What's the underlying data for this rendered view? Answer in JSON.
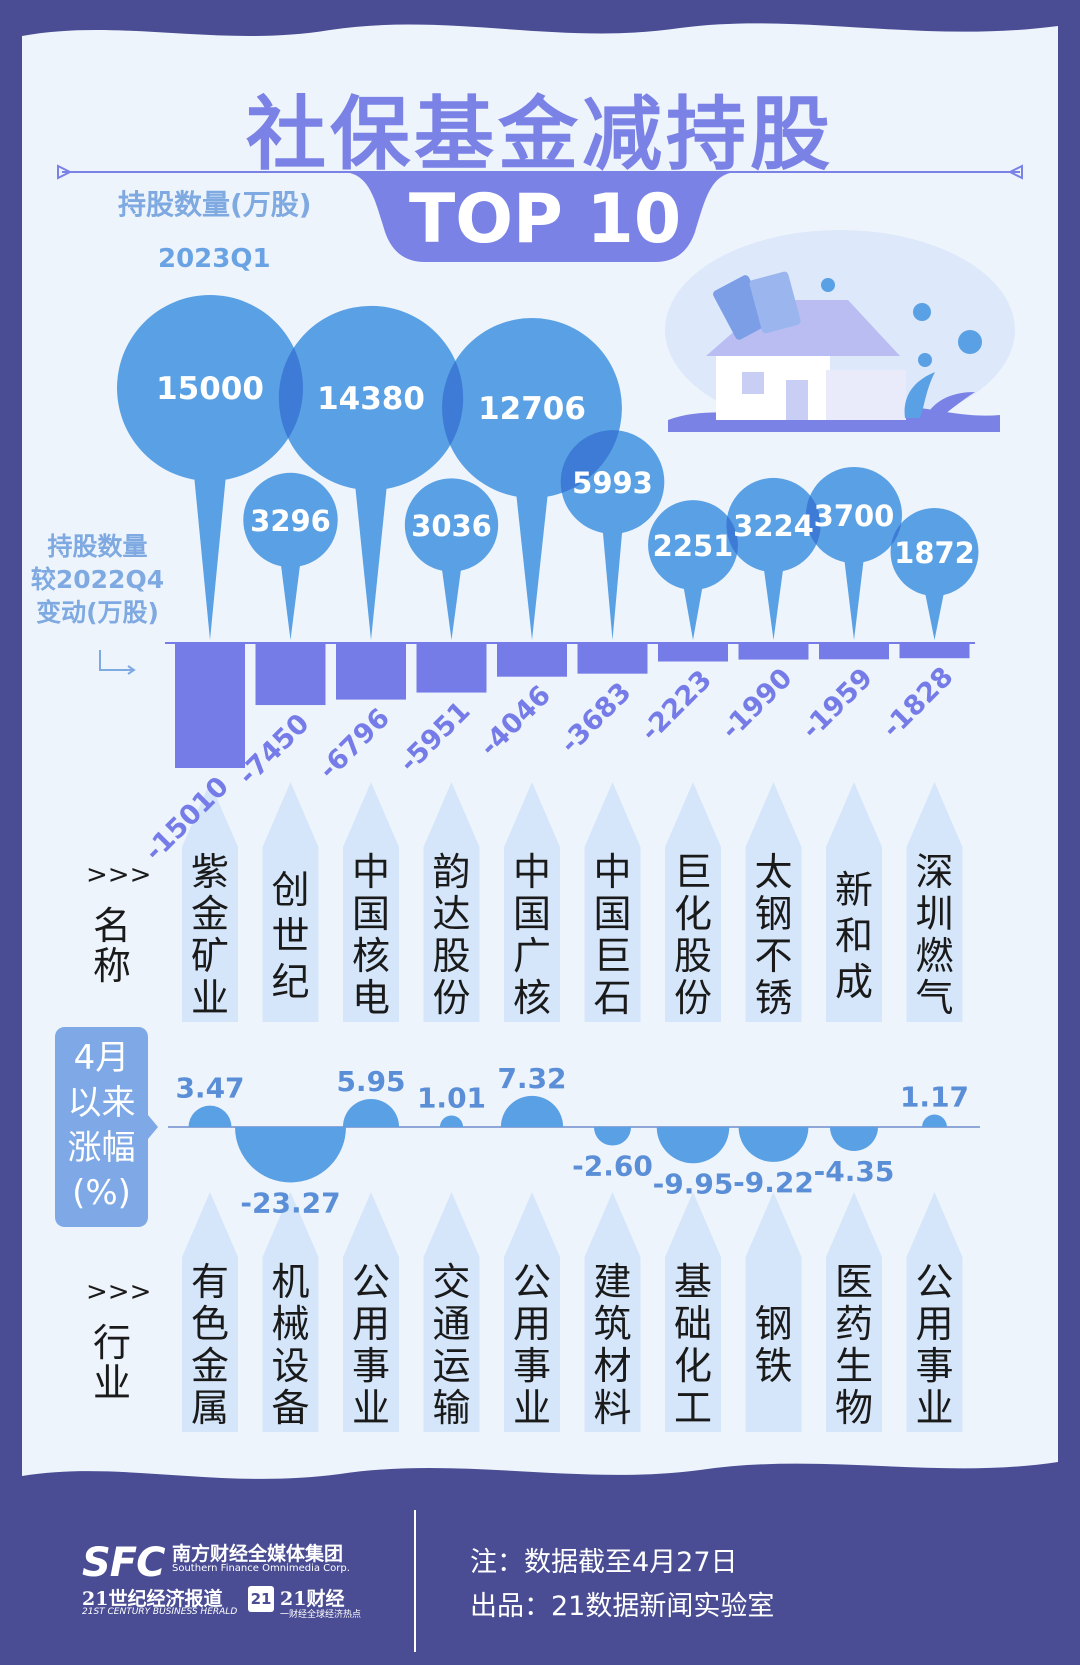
{
  "header": {
    "title": "社保基金减持股",
    "y_label": "持股数量(万股)",
    "top_badge": "TOP 10",
    "period": "2023Q1",
    "change_label_lines": [
      "持股数量",
      "较2022Q4",
      "变动(万股)"
    ]
  },
  "row_labels": {
    "arrows": ">>>",
    "name": [
      "名",
      "称"
    ],
    "industry": [
      "行",
      "业"
    ],
    "rise_lines": [
      "4月",
      "以来",
      "涨幅",
      "(%)"
    ]
  },
  "chart_data": {
    "type": "bubble+bar",
    "categories": [
      "紫金矿业",
      "创世纪",
      "中国核电",
      "韵达股份",
      "中国广核",
      "中国巨石",
      "巨化股份",
      "太钢不锈",
      "新和成",
      "深圳燃气"
    ],
    "series": [
      {
        "name": "持股数量(万股)",
        "values": [
          15000,
          3296,
          14380,
          3036,
          12706,
          5993,
          2251,
          3224,
          3700,
          1872
        ]
      },
      {
        "name": "持股数量较2022Q4变动(万股)",
        "values": [
          -15010,
          -7450,
          -6796,
          -5951,
          -4046,
          -3683,
          -2223,
          -1990,
          -1959,
          -1828
        ]
      },
      {
        "name": "4月以来涨幅(%)",
        "values": [
          3.47,
          -23.27,
          5.95,
          1.01,
          7.32,
          -2.6,
          -9.95,
          -9.22,
          -4.35,
          1.17
        ]
      }
    ],
    "industries": [
      "有色金属",
      "机械设备",
      "公用事业",
      "交通运输",
      "公用事业",
      "建筑材料",
      "基础化工",
      "钢铁",
      "医药生物",
      "公用事业"
    ],
    "rise_labels": [
      "3.47",
      "-23.27",
      "5.95",
      "1.01",
      "7.32",
      "-2.60",
      "-9.95",
      "-9.22",
      "-4.35",
      "1.17"
    ],
    "colors": {
      "bubble": "#5aa0e4",
      "bubble_overlap": "#3d7bd6",
      "bar": "#757ce8",
      "rise_bubble": "#5aa0e4",
      "card": "#d5e6fb",
      "background": "#4a4d93",
      "panel": "#eef4fc"
    }
  },
  "footer": {
    "logo": "SFC",
    "org_cn": "南方财经全媒体集团",
    "org_en": "Southern Finance Omnimedia Corp.",
    "pub1": "21世纪经济报道",
    "pub1_en": "21ST CENTURY BUSINESS HERALD",
    "pub2_badge": "21",
    "pub2": "21财经",
    "pub2_slogan": "一财经全球经济热点",
    "note": "注：数据截至4月27日",
    "producer": "出品：21数据新闻实验室"
  }
}
